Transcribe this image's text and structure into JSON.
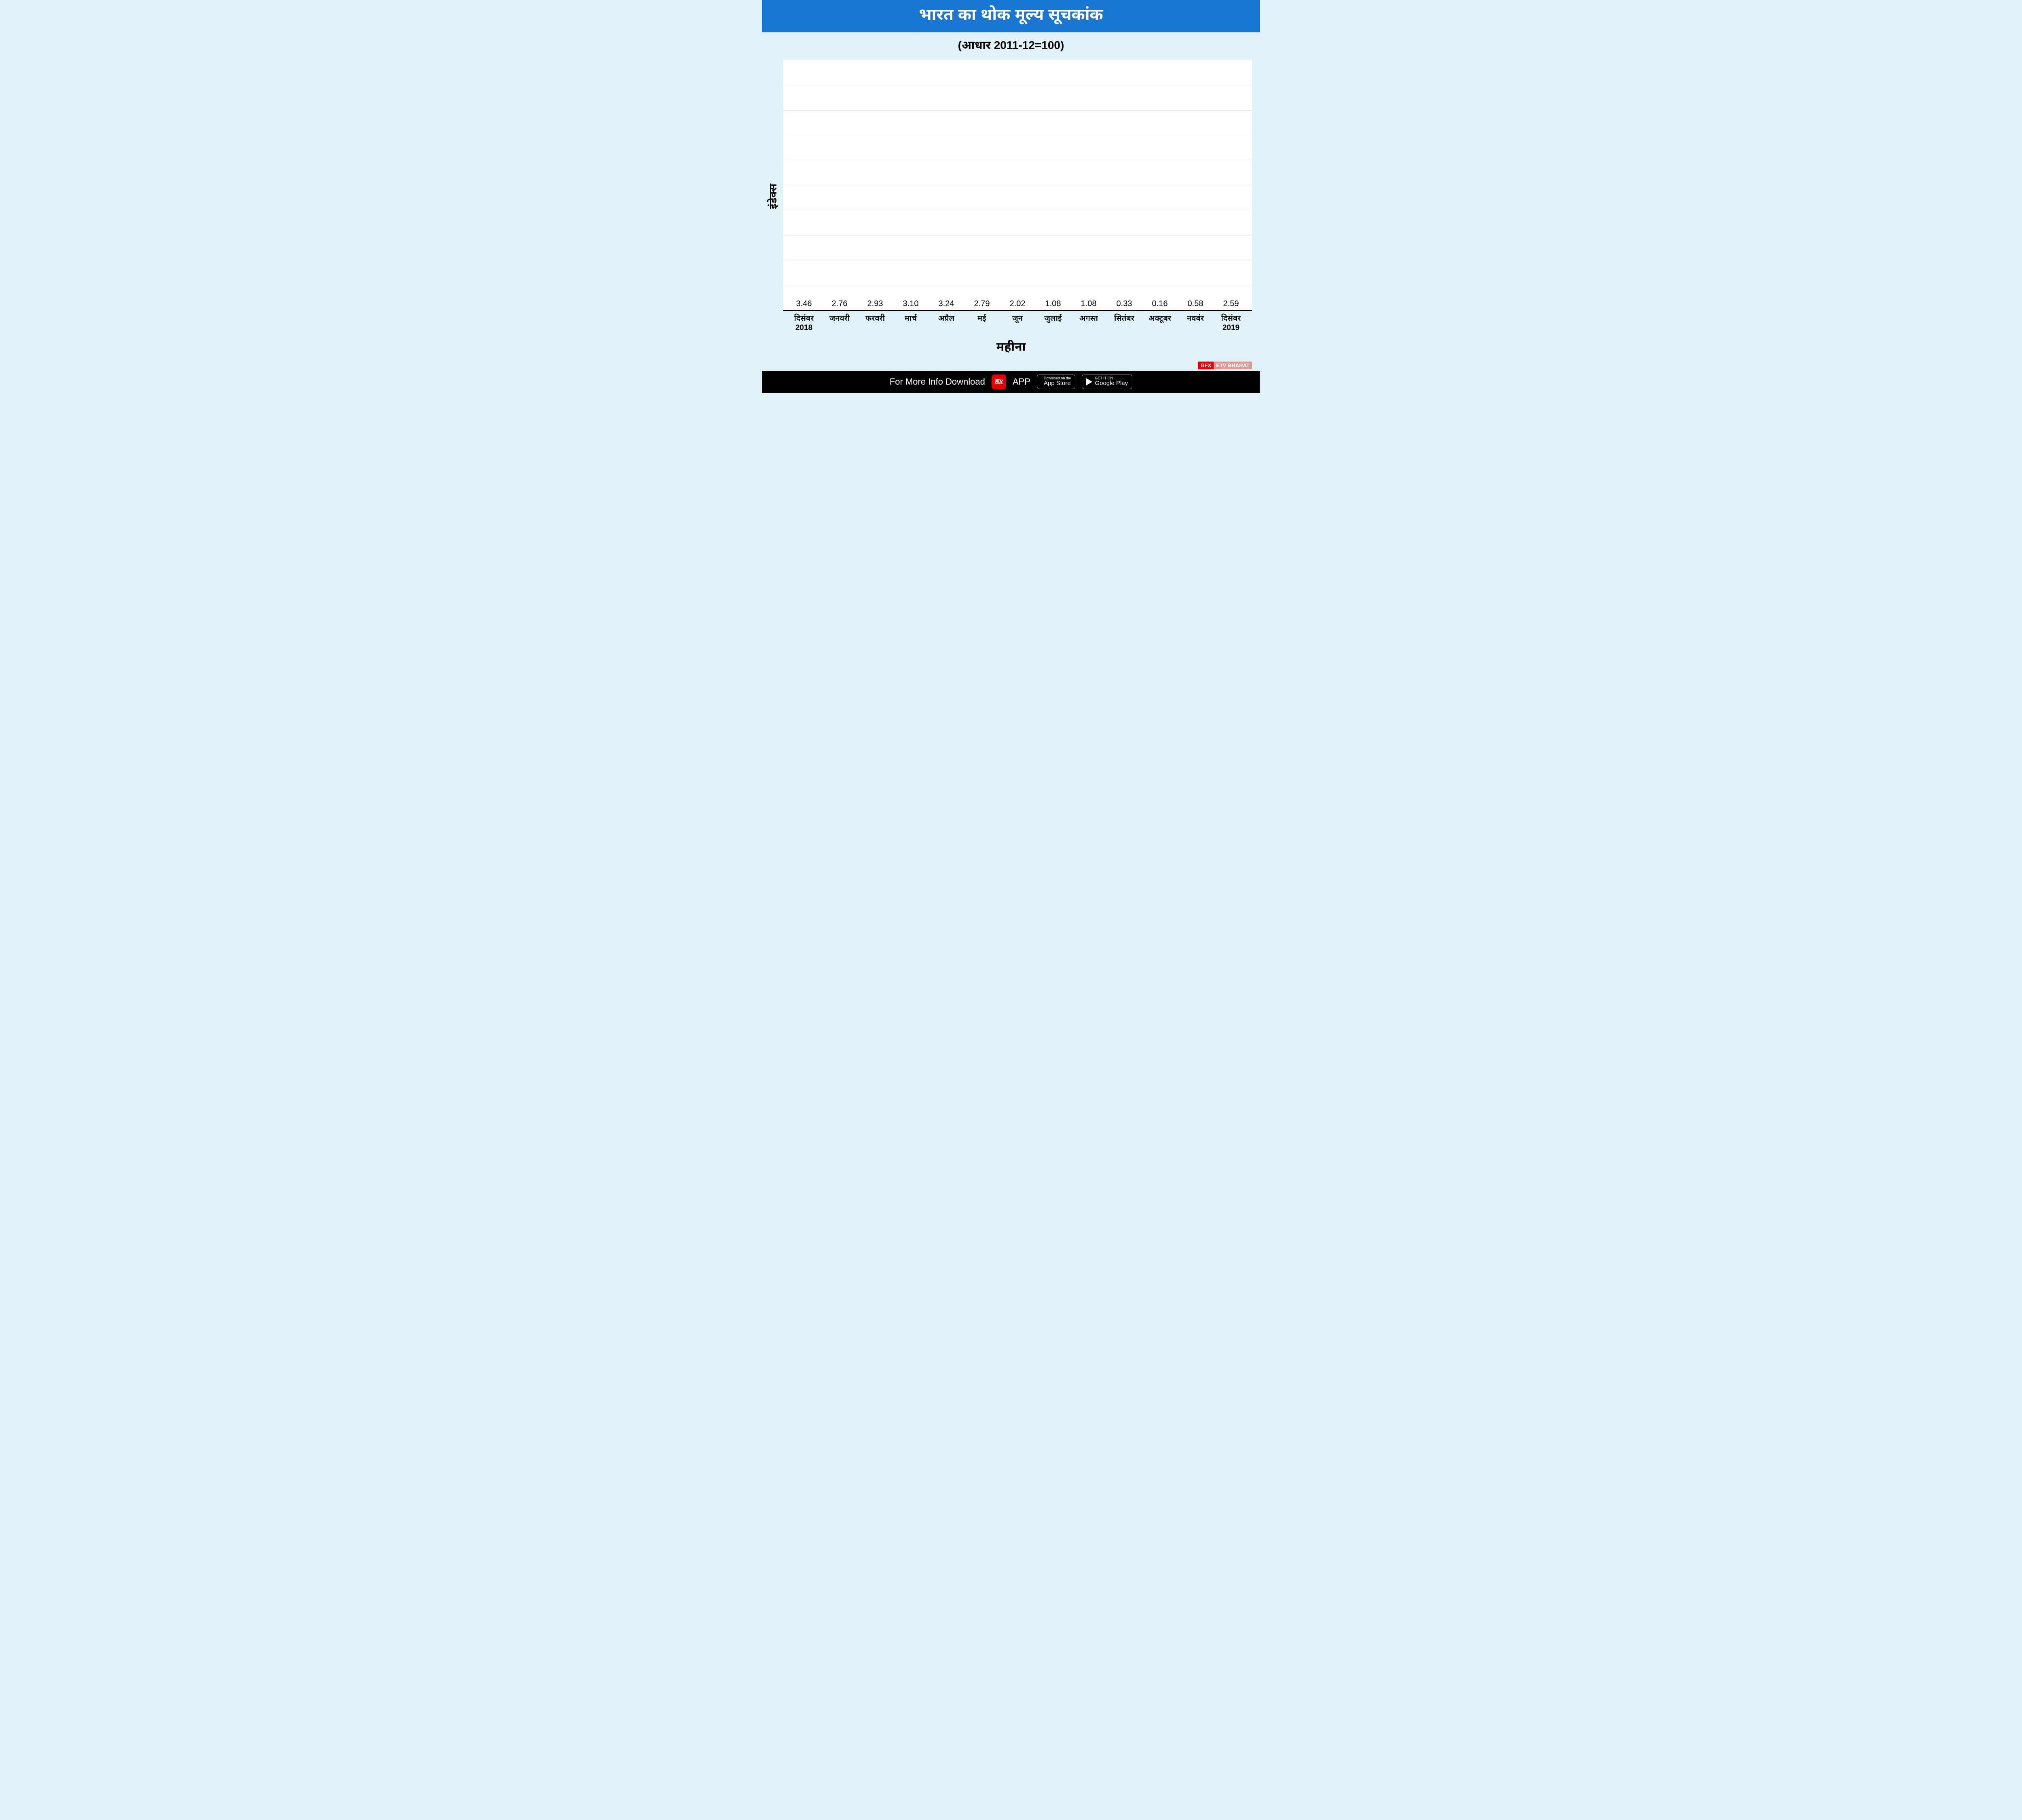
{
  "title_bar": {
    "text": "भारत का थोक मूल्य सूचकांक",
    "bg": "#1976d2",
    "fg": "#ffffff",
    "fontsize": 40
  },
  "subtitle": {
    "text": "(आधार 2011-12=100)",
    "fontsize": 28,
    "color": "#000000"
  },
  "page_bg": "#e0f2f7",
  "chart": {
    "type": "bar",
    "y_label": "इंडेक्स",
    "x_label": "महीना",
    "background_color": "#ffffff",
    "bar_color": "#f5a623",
    "grid_color": "#cccccc",
    "axis_color": "#000000",
    "value_fontsize": 20,
    "xlabel_fontsize": 19,
    "ylim": [
      0,
      10
    ],
    "grid_lines": [
      1,
      2,
      3,
      4,
      5,
      6,
      7,
      8,
      9,
      10
    ],
    "bar_width": 0.7,
    "categories": [
      "दिसंबर\n2018",
      "जनवरी",
      "फरवरी",
      "मार्च",
      "अप्रैल",
      "मई",
      "जून",
      "जुलाई",
      "अगस्त",
      "सितंबर",
      "अक्टूबर",
      "नवबंर",
      "दिसंबर\n2019"
    ],
    "values": [
      3.46,
      2.76,
      2.93,
      3.1,
      3.24,
      2.79,
      2.02,
      1.08,
      1.08,
      0.33,
      0.16,
      0.58,
      2.59
    ],
    "value_labels": [
      "3.46",
      "2.76",
      "2.93",
      "3.10",
      "3.24",
      "2.79",
      "2.02",
      "1.08",
      "1.08",
      "0.33",
      "0.16",
      "0.58",
      "2.59"
    ]
  },
  "branding": {
    "gfx": "GFX",
    "etv": "ETV BHARAT"
  },
  "footer": {
    "text": "For More Info Download",
    "app_word": "APP",
    "logo_top": "हtv",
    "logo_bottom": "BHARAT",
    "appstore": {
      "small": "Download on the",
      "big": "App Store"
    },
    "play": {
      "small": "GET IT ON",
      "big": "Google Play"
    }
  }
}
